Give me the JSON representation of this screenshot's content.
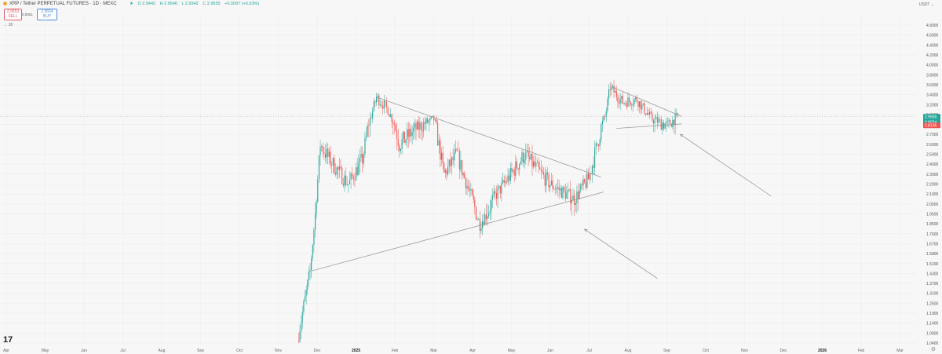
{
  "header": {
    "title": "XRP / Tether PERPETUAL FUTURES · 1D · MEXC",
    "ohlc": [
      "O 2.9442",
      "H 2.9646",
      "L 2.9342",
      "C 2.9555",
      "+0.0097 (+0.33%)"
    ],
    "sell": {
      "price": "2.9553",
      "label": "SELL"
    },
    "spread": "0.0001",
    "buy": {
      "price": "2.9554",
      "label": "BUY"
    },
    "indicator": "16",
    "currency": "USDT"
  },
  "colors": {
    "up": "#26a69a",
    "down": "#ef5350",
    "trendline": "#909090",
    "price_tag_up": "#26a69a",
    "price_tag_down": "#ef5350"
  },
  "chart_data": {
    "type": "candlestick",
    "x_axis_labels": [
      "Apr",
      "May",
      "Jun",
      "Jul",
      "Aug",
      "Sep",
      "Oct",
      "Nov",
      "Dec",
      "2025",
      "Feb",
      "Mar",
      "Apr",
      "May",
      "Jun",
      "Jul",
      "Aug",
      "Sep",
      "Oct",
      "Nov",
      "Dec",
      "2026",
      "Feb",
      "Mar"
    ],
    "y_axis_labels": [
      "4.8000",
      "4.6000",
      "4.4000",
      "4.2000",
      "4.0000",
      "3.8000",
      "3.6000",
      "3.4000",
      "3.2000",
      "3.0000",
      "2.8000",
      "2.7000",
      "2.6000",
      "2.5000",
      "2.4000",
      "2.3000",
      "2.2000",
      "2.1000",
      "2.0000",
      "1.9500",
      "1.8500",
      "1.7600",
      "1.6700",
      "1.5800",
      "1.5100",
      "1.4300",
      "1.3700",
      "1.3100",
      "1.2500",
      "1.1900",
      "1.1400",
      "1.0900",
      "1.0400"
    ],
    "price_tags": [
      {
        "value": "2.9555",
        "sub": "10:11:43",
        "color": "up"
      },
      {
        "value": "2.8654",
        "color": "up"
      },
      {
        "value": "2.8136",
        "color": "down"
      }
    ],
    "ohlc_anchors": [
      {
        "date": "2024-11-15",
        "close": 1.05
      },
      {
        "date": "2024-11-25",
        "close": 1.45
      },
      {
        "date": "2024-12-03",
        "close": 2.6
      },
      {
        "date": "2024-12-10",
        "close": 2.45
      },
      {
        "date": "2024-12-25",
        "close": 2.2
      },
      {
        "date": "2025-01-05",
        "close": 2.45
      },
      {
        "date": "2025-01-16",
        "close": 3.35
      },
      {
        "date": "2025-01-25",
        "close": 3.1
      },
      {
        "date": "2025-02-03",
        "close": 2.6
      },
      {
        "date": "2025-02-15",
        "close": 2.75
      },
      {
        "date": "2025-03-02",
        "close": 2.9
      },
      {
        "date": "2025-03-10",
        "close": 2.3
      },
      {
        "date": "2025-03-20",
        "close": 2.5
      },
      {
        "date": "2025-04-07",
        "close": 1.85
      },
      {
        "date": "2025-04-20",
        "close": 2.1
      },
      {
        "date": "2025-05-12",
        "close": 2.5
      },
      {
        "date": "2025-06-01",
        "close": 2.2
      },
      {
        "date": "2025-06-20",
        "close": 2.05
      },
      {
        "date": "2025-07-01",
        "close": 2.25
      },
      {
        "date": "2025-07-14",
        "close": 2.95
      },
      {
        "date": "2025-07-18",
        "close": 3.55
      },
      {
        "date": "2025-07-28",
        "close": 3.25
      },
      {
        "date": "2025-08-08",
        "close": 3.3
      },
      {
        "date": "2025-08-20",
        "close": 2.9
      },
      {
        "date": "2025-09-01",
        "close": 2.8
      },
      {
        "date": "2025-09-09",
        "close": 2.9555
      }
    ],
    "trendlines": [
      {
        "from": {
          "date": "2025-01-16",
          "price": 3.35
        },
        "to": {
          "date": "2025-07-11",
          "price": 2.27
        }
      },
      {
        "from": {
          "date": "2024-11-26",
          "price": 1.45
        },
        "to": {
          "date": "2025-07-13",
          "price": 2.12
        }
      },
      {
        "from": {
          "date": "2025-07-20",
          "price": 3.55
        },
        "to": {
          "date": "2025-09-12",
          "price": 2.96
        }
      },
      {
        "from": {
          "date": "2025-07-23",
          "price": 2.76
        },
        "to": {
          "date": "2025-09-12",
          "price": 2.81
        }
      }
    ],
    "arrows": [
      {
        "from": {
          "date": "2025-11-21",
          "price": 2.08
        },
        "to": {
          "date": "2025-09-11",
          "price": 2.7
        }
      },
      {
        "from": {
          "date": "2025-08-24",
          "price": 1.4
        },
        "to": {
          "date": "2025-06-28",
          "price": 1.8
        }
      }
    ],
    "y_scale": "log",
    "grid": true
  }
}
